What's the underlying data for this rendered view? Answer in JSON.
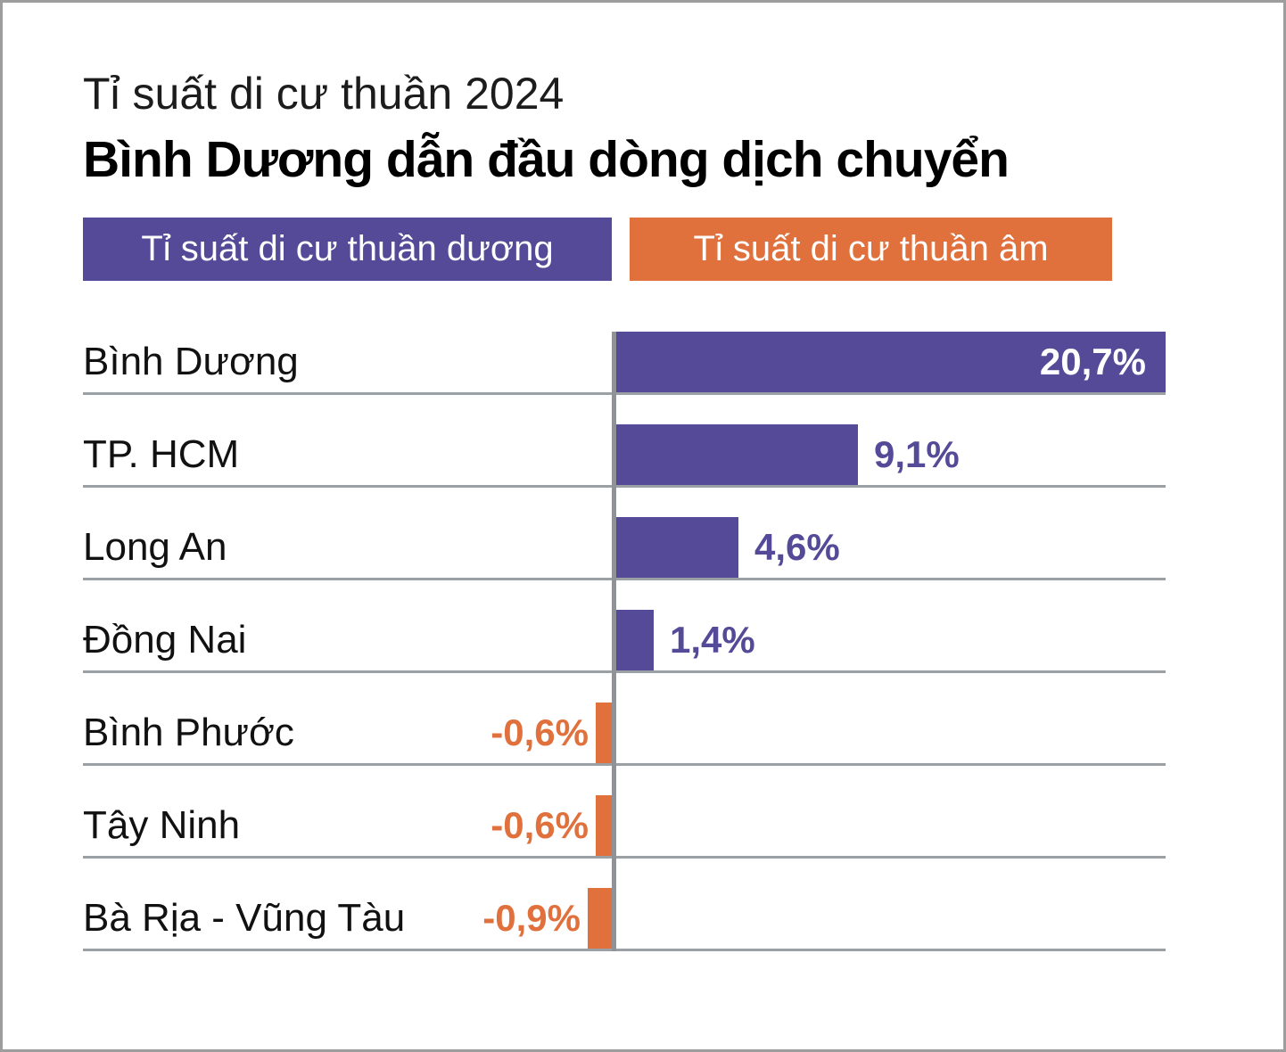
{
  "title": {
    "kicker": "Tỉ suất di cư thuần 2024",
    "headline": "Bình Dương dẫn đầu dòng dịch chuyển"
  },
  "legend": [
    {
      "label": "Tỉ suất di cư thuần dương",
      "color": "#544A97"
    },
    {
      "label": "Tỉ suất di cư thuần âm",
      "color": "#E0703C"
    }
  ],
  "chart_data": {
    "type": "bar",
    "orientation": "horizontal",
    "title": "Tỉ suất di cư thuần 2024",
    "subtitle": "Bình Dương dẫn đầu dòng dịch chuyển",
    "categories": [
      "Bình Dương",
      "TP. HCM",
      "Long An",
      "Đồng Nai",
      "Bình Phước",
      "Tây Ninh",
      "Bà Rịa - Vũng Tàu"
    ],
    "values": [
      20.7,
      9.1,
      4.6,
      1.4,
      -0.6,
      -0.6,
      -0.9
    ],
    "value_labels": [
      "20,7%",
      "9,1%",
      "4,6%",
      "1,4%",
      "-0,6%",
      "-0,6%",
      "-0,9%"
    ],
    "xlim": [
      -0.9,
      20.7
    ],
    "grid": false,
    "legend_position": "top",
    "positive_color": "#544A97",
    "negative_color": "#E0703C",
    "value_label_inside_color": "#FFFFFF"
  },
  "colors": {
    "background": "#FFFFFF",
    "border": "#9D9D9D",
    "row_line": "#9BA0A5",
    "zero_line": "#8F9397",
    "text": "#111111"
  }
}
